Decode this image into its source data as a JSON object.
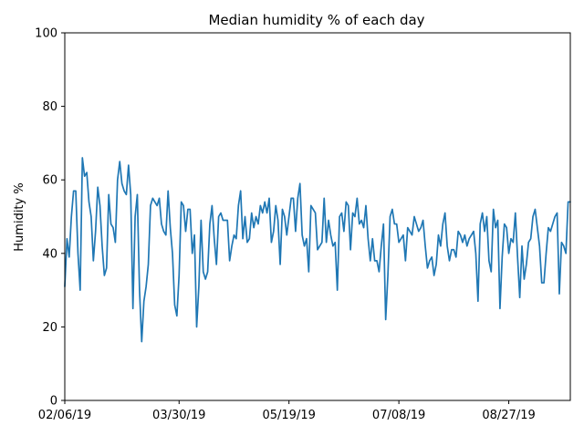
{
  "chart_data": {
    "type": "line",
    "title": "Median humidity % of each day",
    "xlabel": "",
    "ylabel": "Humidity %",
    "ylim": [
      0,
      100
    ],
    "yticks": [
      0,
      20,
      40,
      60,
      80,
      100
    ],
    "x_start": "02/06/19",
    "x_end": "09/30/19",
    "xtick_labels": [
      "02/06/19",
      "03/30/19",
      "05/19/19",
      "07/08/19",
      "08/27/19"
    ],
    "xtick_dates": [
      "2019-02-06",
      "2019-03-30",
      "2019-05-19",
      "2019-07-08",
      "2019-08-27"
    ],
    "grid": false,
    "line_color": "#1f77b4",
    "series": [
      {
        "name": "",
        "values": [
          31,
          44,
          39,
          50,
          57,
          57,
          40,
          30,
          66,
          61,
          62,
          54,
          50,
          38,
          46,
          58,
          53,
          42,
          34,
          36,
          56,
          48,
          47,
          43,
          60,
          65,
          59,
          57,
          56,
          64,
          56,
          25,
          50,
          56,
          30,
          16,
          27,
          31,
          37,
          53,
          55,
          54,
          53,
          55,
          48,
          46,
          45,
          57,
          47,
          40,
          26,
          23,
          34,
          54,
          53,
          46,
          52,
          52,
          40,
          45,
          20,
          31,
          49,
          35,
          33,
          35,
          48,
          53,
          44,
          37,
          50,
          51,
          49,
          49,
          49,
          38,
          42,
          45,
          44,
          53,
          57,
          44,
          50,
          43,
          44,
          51,
          47,
          50,
          48,
          53,
          51,
          54,
          51,
          55,
          43,
          46,
          53,
          49,
          37,
          52,
          50,
          45,
          50,
          55,
          55,
          46,
          55,
          59,
          45,
          42,
          44,
          35,
          53,
          52,
          51,
          41,
          42,
          43,
          55,
          43,
          49,
          45,
          42,
          43,
          30,
          50,
          51,
          46,
          54,
          53,
          41,
          51,
          50,
          55,
          48,
          49,
          47,
          53,
          44,
          38,
          44,
          38,
          38,
          35,
          42,
          48,
          22,
          34,
          50,
          52,
          48,
          48,
          43,
          44,
          45,
          38,
          47,
          46,
          45,
          50,
          48,
          46,
          47,
          49,
          42,
          36,
          38,
          39,
          34,
          37,
          45,
          42,
          48,
          51,
          42,
          38,
          41,
          41,
          39,
          46,
          45,
          43,
          45,
          42,
          44,
          45,
          46,
          40,
          27,
          48,
          51,
          46,
          50,
          38,
          35,
          52,
          47,
          49,
          25,
          39,
          48,
          47,
          40,
          44,
          43,
          51,
          39,
          28,
          42,
          33,
          37,
          43,
          44,
          50,
          52,
          47,
          42,
          32,
          32,
          40,
          47,
          46,
          48,
          50,
          51,
          29,
          43,
          42,
          40,
          54,
          54
        ]
      }
    ]
  }
}
